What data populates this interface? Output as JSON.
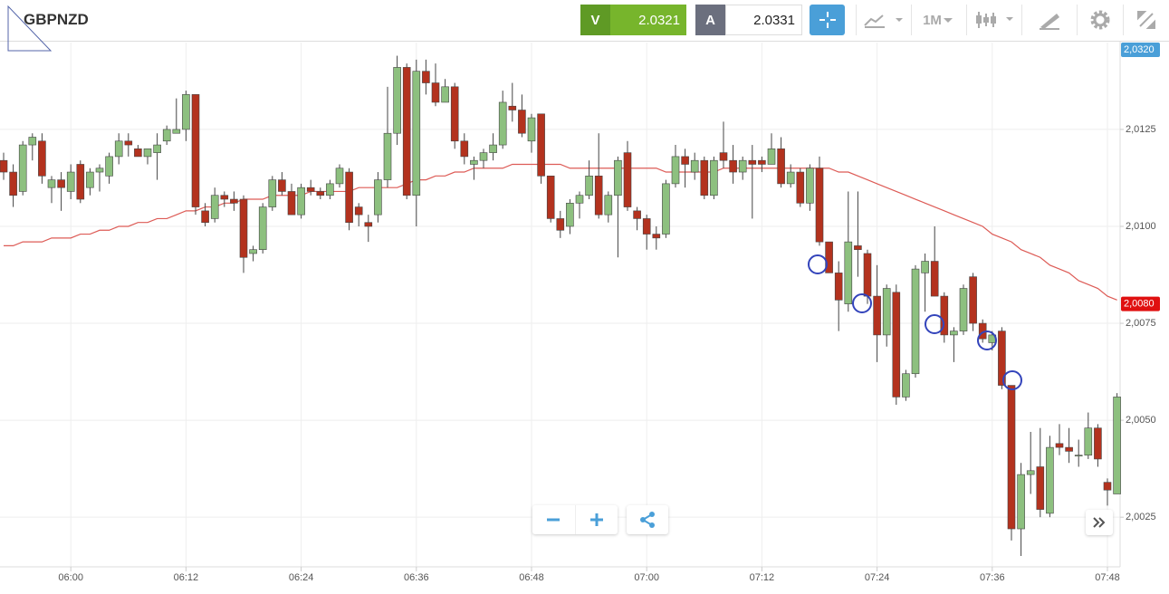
{
  "toolbar": {
    "symbol": "GBPNZD",
    "sell_label": "V",
    "sell_price": 2.0321,
    "buy_label": "A",
    "buy_price": 2.0331,
    "timeframe": "1M"
  },
  "chart_data": {
    "type": "candlestick",
    "categories": [
      null,
      null,
      null,
      null,
      null,
      null,
      null,
      "06:00",
      null,
      null,
      null,
      null,
      null,
      null,
      null,
      null,
      null,
      null,
      null,
      "06:12",
      null,
      null,
      null,
      null,
      null,
      null,
      null,
      null,
      null,
      null,
      null,
      "06:24",
      null,
      null,
      null,
      null,
      null,
      null,
      null,
      null,
      null,
      null,
      null,
      "06:36",
      null,
      null,
      null,
      null,
      null,
      null,
      null,
      null,
      null,
      null,
      null,
      "06:48",
      null,
      null,
      null,
      null,
      null,
      null,
      null,
      null,
      null,
      null,
      null,
      "07:00",
      null,
      null,
      null,
      null,
      null,
      null,
      null,
      null,
      null,
      null,
      null,
      "07:12",
      null,
      null,
      null,
      null,
      null,
      null,
      null,
      null,
      null,
      null,
      null,
      "07:24",
      null,
      null,
      null,
      null,
      null,
      null,
      null,
      null,
      null,
      null,
      null,
      "07:36",
      null,
      null,
      null,
      null,
      null,
      null,
      null,
      null,
      null,
      null,
      null,
      "07:48",
      null
    ],
    "open": [
      2.0117,
      2.0114,
      2.0109,
      2.0121,
      2.0122,
      2.011,
      2.0112,
      2.0109,
      2.0116,
      2.011,
      2.0114,
      2.0113,
      2.0118,
      2.0122,
      2.012,
      2.0118,
      2.0119,
      2.0122,
      2.0124,
      2.0125,
      2.0134,
      2.0104,
      2.0102,
      2.0108,
      2.0107,
      2.0107,
      2.0093,
      2.0094,
      2.0105,
      2.0112,
      2.0109,
      2.0103,
      2.011,
      2.0109,
      2.0108,
      2.0111,
      2.0114,
      2.0105,
      2.0101,
      2.0103,
      2.0112,
      2.0124,
      2.0141,
      2.0108,
      2.014,
      2.0137,
      2.0132,
      2.0136,
      2.0122,
      2.0116,
      2.0117,
      2.0119,
      2.0121,
      2.0131,
      2.013,
      2.0122,
      2.0129,
      2.0113,
      2.0102,
      2.01,
      2.0106,
      2.0108,
      2.0113,
      2.0103,
      2.0108,
      2.0119,
      2.0104,
      2.0102,
      2.0098,
      2.0098,
      2.0111,
      2.0118,
      2.0114,
      2.0117,
      2.0108,
      2.0119,
      2.0117,
      2.0114,
      2.0117,
      2.0117,
      2.0116,
      2.012,
      2.0111,
      2.0114,
      2.0106,
      2.0115,
      2.0096,
      2.0088,
      2.008,
      2.0095,
      2.0093,
      2.0082,
      2.0072,
      2.0083,
      2.0056,
      2.0062,
      2.0088,
      2.0091,
      2.0082,
      2.0072,
      2.0073,
      2.0087,
      2.0075,
      2.007,
      2.0073,
      2.0059,
      2.0022,
      2.0036,
      2.0038,
      2.0026,
      2.0044,
      2.0043,
      2.0041,
      2.0041,
      2.0048,
      2.0034,
      2.0031
    ],
    "high": [
      2.0119,
      2.0116,
      2.0122,
      2.0124,
      2.0124,
      2.0113,
      2.0114,
      2.0116,
      2.0117,
      2.0115,
      2.0116,
      2.0119,
      2.0124,
      2.0124,
      2.0121,
      2.012,
      2.0124,
      2.0126,
      2.0133,
      2.0135,
      2.0134,
      2.0106,
      2.011,
      2.0109,
      2.0109,
      2.0108,
      2.0095,
      2.0106,
      2.0113,
      2.0114,
      2.0111,
      2.0111,
      2.0112,
      2.011,
      2.0112,
      2.0116,
      2.0115,
      2.0106,
      2.0103,
      2.0114,
      2.0136,
      2.0144,
      2.0142,
      2.0143,
      2.0143,
      2.0142,
      2.0138,
      2.0137,
      2.0124,
      2.0118,
      2.012,
      2.0124,
      2.0135,
      2.0137,
      2.0134,
      2.0129,
      2.0129,
      2.0113,
      2.0104,
      2.0107,
      2.0109,
      2.0117,
      2.0124,
      2.0109,
      2.0118,
      2.0122,
      2.0105,
      2.0103,
      2.01,
      2.0112,
      2.0121,
      2.012,
      2.0119,
      2.0118,
      2.0118,
      2.0127,
      2.0121,
      2.0118,
      2.0121,
      2.0118,
      2.0124,
      2.0123,
      2.0116,
      2.0115,
      2.0116,
      2.0118,
      2.0096,
      2.0091,
      2.0109,
      2.0109,
      2.0094,
      2.009,
      2.0085,
      2.0085,
      2.0063,
      2.009,
      2.0093,
      2.01,
      2.0083,
      2.0074,
      2.0085,
      2.0088,
      2.0076,
      2.0073,
      2.0074,
      2.0059,
      2.0039,
      2.0047,
      2.0048,
      2.0046,
      2.0049,
      2.0048,
      2.0045,
      2.0052,
      2.0049,
      2.0035,
      2.0057
    ],
    "low": [
      2.0112,
      2.0105,
      2.0108,
      2.0117,
      2.0111,
      2.0106,
      2.0104,
      2.0107,
      2.0106,
      2.0108,
      2.0109,
      2.0111,
      2.0116,
      2.0118,
      2.0118,
      2.0116,
      2.0112,
      2.0121,
      2.0124,
      2.0122,
      2.0103,
      2.01,
      2.0101,
      2.0105,
      2.0104,
      2.0088,
      2.0091,
      2.0093,
      2.0104,
      2.0108,
      2.0103,
      2.0102,
      2.0108,
      2.0107,
      2.0107,
      2.011,
      2.0099,
      2.01,
      2.0096,
      2.0101,
      2.011,
      2.0121,
      2.0107,
      2.01,
      2.0134,
      2.0131,
      2.0132,
      2.012,
      2.0116,
      2.0112,
      2.0115,
      2.0117,
      2.012,
      2.0127,
      2.0123,
      2.0119,
      2.0111,
      2.0101,
      2.0097,
      2.0098,
      2.0102,
      2.0107,
      2.0102,
      2.0101,
      2.0092,
      2.0104,
      2.0099,
      2.0094,
      2.0094,
      2.0097,
      2.011,
      2.011,
      2.0112,
      2.0107,
      2.0107,
      2.0115,
      2.0111,
      2.0112,
      2.0102,
      2.0114,
      2.0116,
      2.011,
      2.011,
      2.0105,
      2.0104,
      2.0095,
      2.0088,
      2.0073,
      2.0078,
      2.0087,
      2.008,
      2.0065,
      2.0069,
      2.0054,
      2.0055,
      2.0061,
      2.0078,
      2.0082,
      2.007,
      2.0065,
      2.0072,
      2.0073,
      2.007,
      2.0068,
      2.0058,
      2.0019,
      2.0015,
      2.0031,
      2.0025,
      2.0025,
      2.0041,
      2.0039,
      2.0038,
      2.004,
      2.0038,
      2.0028,
      2.0031
    ],
    "close": [
      2.0114,
      2.0108,
      2.0121,
      2.0123,
      2.0113,
      2.0112,
      2.011,
      2.0114,
      2.0107,
      2.0114,
      2.0115,
      2.0118,
      2.0122,
      2.0121,
      2.0118,
      2.012,
      2.0121,
      2.0125,
      2.0125,
      2.0134,
      2.0105,
      2.0101,
      2.0108,
      2.0107,
      2.0106,
      2.0092,
      2.0094,
      2.0105,
      2.0112,
      2.0109,
      2.0103,
      2.011,
      2.0109,
      2.0108,
      2.0111,
      2.0115,
      2.0101,
      2.0103,
      2.01,
      2.0112,
      2.0124,
      2.0141,
      2.0108,
      2.014,
      2.0137,
      2.0132,
      2.0136,
      2.0122,
      2.0118,
      2.0117,
      2.0119,
      2.0121,
      2.0132,
      2.013,
      2.0124,
      2.0128,
      2.0113,
      2.0102,
      2.0099,
      2.0106,
      2.0108,
      2.0113,
      2.0103,
      2.0108,
      2.0117,
      2.0105,
      2.0102,
      2.0098,
      2.0097,
      2.0111,
      2.0118,
      2.0116,
      2.0117,
      2.0108,
      2.0117,
      2.0117,
      2.0114,
      2.0117,
      2.0116,
      2.0116,
      2.012,
      2.0111,
      2.0114,
      2.0106,
      2.0115,
      2.0096,
      2.0088,
      2.0081,
      2.0096,
      2.0094,
      2.0082,
      2.0072,
      2.0084,
      2.0056,
      2.0062,
      2.0089,
      2.0091,
      2.0082,
      2.0072,
      2.0073,
      2.0084,
      2.0075,
      2.0071,
      2.0072,
      2.0059,
      2.0022,
      2.0036,
      2.0037,
      2.0027,
      2.0043,
      2.0043,
      2.0042,
      2.0041,
      2.0048,
      2.004,
      2.0032,
      2.0056
    ],
    "up_color": "#8dc07f",
    "down_color": "#b3321e",
    "moving_average": {
      "color": "#dd5b56",
      "values": [
        2.0095,
        2.0095,
        2.0096,
        2.0096,
        2.0096,
        2.0097,
        2.0097,
        2.0097,
        2.0098,
        2.0098,
        2.0099,
        2.0099,
        2.01,
        2.01,
        2.0101,
        2.0101,
        2.0102,
        2.0102,
        2.0103,
        2.0104,
        2.0104,
        2.0105,
        2.0105,
        2.0106,
        2.0106,
        2.0107,
        2.0107,
        2.0107,
        2.0108,
        2.0108,
        2.0108,
        2.0108,
        2.0109,
        2.0109,
        2.0109,
        2.0109,
        2.0109,
        2.011,
        2.011,
        2.011,
        2.011,
        2.011,
        2.0111,
        2.0112,
        2.0112,
        2.0113,
        2.0113,
        2.0114,
        2.0114,
        2.0115,
        2.0115,
        2.0115,
        2.0115,
        2.0116,
        2.0116,
        2.0116,
        2.0116,
        2.0116,
        2.0116,
        2.0115,
        2.0115,
        2.0115,
        2.0115,
        2.0115,
        2.0115,
        2.0115,
        2.0115,
        2.0115,
        2.0115,
        2.0114,
        2.0114,
        2.0114,
        2.0114,
        2.0114,
        2.0114,
        2.0115,
        2.0115,
        2.0115,
        2.0115,
        2.0115,
        2.0115,
        2.0115,
        2.0115,
        2.0115,
        2.0115,
        2.0115,
        2.0115,
        2.0114,
        2.0114,
        2.0113,
        2.0112,
        2.0111,
        2.011,
        2.0109,
        2.0108,
        2.0107,
        2.0106,
        2.0105,
        2.0104,
        2.0103,
        2.0102,
        2.0101,
        2.01,
        2.0098,
        2.0097,
        2.0096,
        2.0094,
        2.0093,
        2.0092,
        2.009,
        2.0089,
        2.0088,
        2.0086,
        2.0085,
        2.0084,
        2.0082,
        2.0081
      ]
    },
    "price_tags": [
      {
        "value": 2.032,
        "label": "2,0320",
        "color": "#4a9fd8"
      },
      {
        "value": 2.008,
        "label": "2,0080",
        "color": "#e01010"
      }
    ],
    "ylim": [
      2.00122,
      2.01474
    ],
    "yticks": [
      {
        "value": 2.0025,
        "label": "2,0025"
      },
      {
        "value": 2.005,
        "label": "2,0050"
      },
      {
        "value": 2.0075,
        "label": "2,0075"
      },
      {
        "value": 2.01,
        "label": "2,0100"
      },
      {
        "value": 2.0125,
        "label": "2,0125"
      }
    ],
    "grid": true
  }
}
